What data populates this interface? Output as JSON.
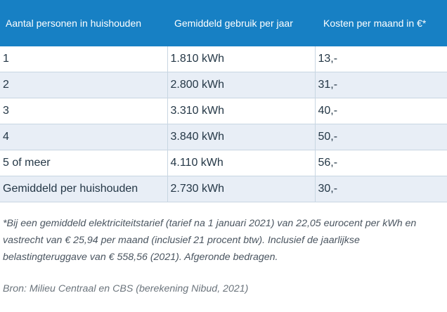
{
  "table": {
    "headers": [
      "Aantal personen in huishouden",
      "Gemiddeld gebruik per jaar",
      "Kosten per maand in €*"
    ],
    "rows": [
      [
        "1",
        "1.810 kWh",
        "13,-"
      ],
      [
        "2",
        "2.800 kWh",
        "31,-"
      ],
      [
        "3",
        "3.310 kWh",
        "40,-"
      ],
      [
        "4",
        "3.840 kWh",
        "50,-"
      ],
      [
        "5 of meer",
        "4.110 kWh",
        "56,-"
      ],
      [
        "Gemiddeld per huishouden",
        "2.730 kWh",
        "30,-"
      ]
    ]
  },
  "footnote": "*Bij een gemiddeld elektriciteitstarief (tarief na 1 januari 2021) van 22,05 eurocent per kWh en vastrecht van € 25,94 per maand (inclusief 21 procent btw). Inclusief de jaarlijkse belastingteruggave van € 558,56 (2021). Afgeronde bedragen.",
  "source": "Bron: Milieu Centraal en CBS (berekening Nibud, 2021)",
  "colors": {
    "header_bg": "#1780c4",
    "header_text": "#ffffff",
    "row_alt_bg": "#e8eef6",
    "body_text": "#243746"
  }
}
